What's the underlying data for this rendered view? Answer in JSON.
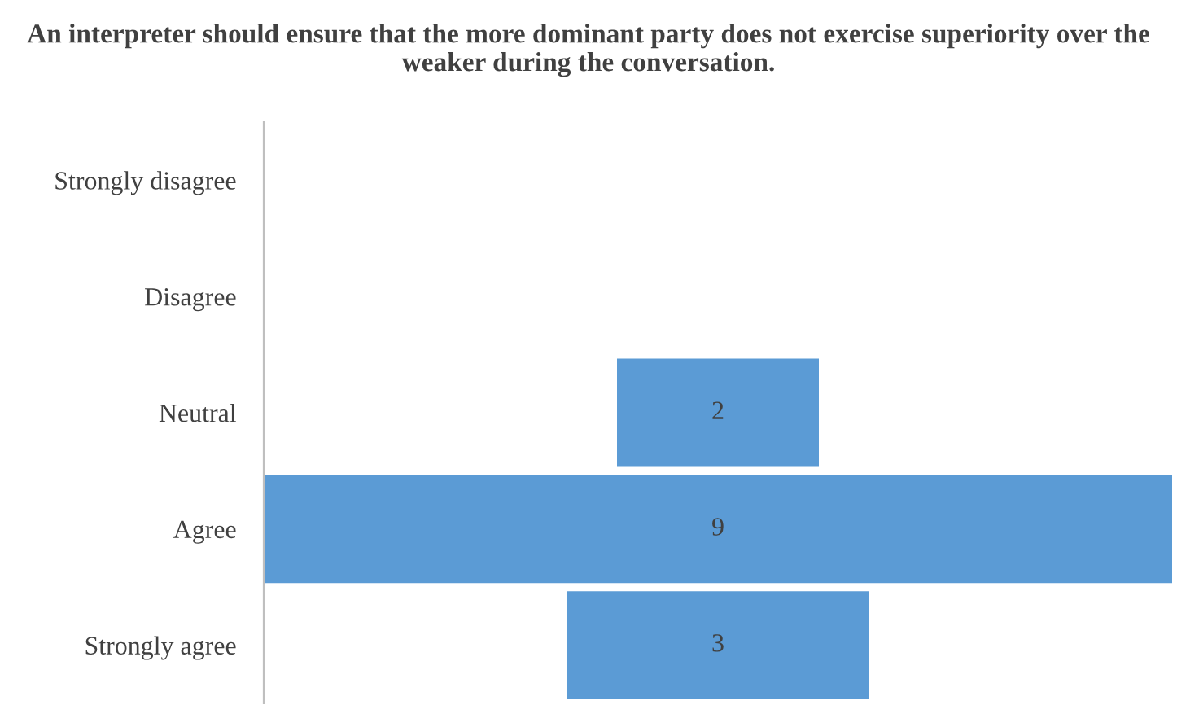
{
  "chart_data": {
    "type": "other",
    "title": "An interpreter should ensure that the more dominant party does not exercise superiority over the weaker during the conversation.",
    "categories": [
      "Strongly disagree",
      "Disagree",
      "Neutral",
      "Agree",
      "Strongly agree"
    ],
    "values": [
      null,
      null,
      2,
      9,
      3
    ],
    "data_labels": true,
    "color": "#5b9bd5"
  }
}
